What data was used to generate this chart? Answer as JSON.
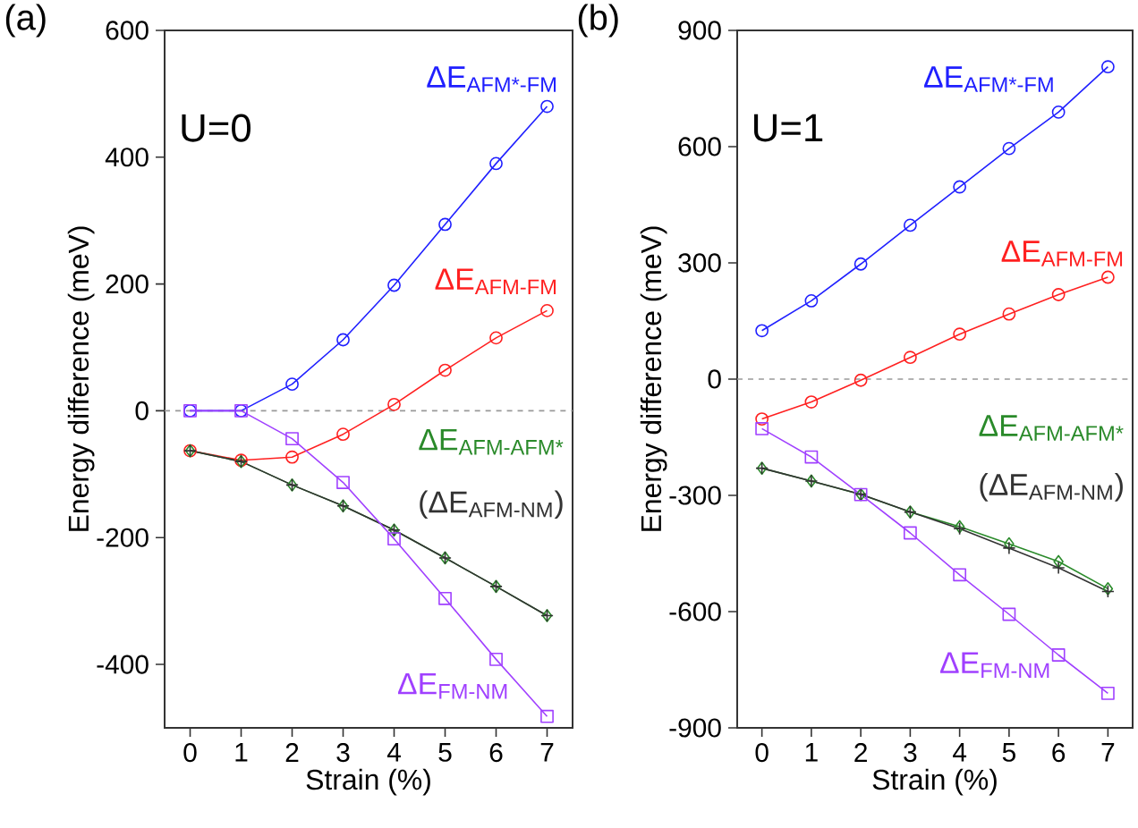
{
  "chart_data": [
    {
      "type": "line",
      "title": "(a)",
      "xlabel": "Strain (%)",
      "ylabel": "Energy difference (meV)",
      "annotations": [
        "U=0"
      ],
      "x": [
        0,
        1,
        2,
        3,
        4,
        5,
        6,
        7
      ],
      "xlim": [
        -0.5,
        7.5
      ],
      "xticks": [
        0,
        1,
        2,
        3,
        4,
        5,
        6,
        7
      ],
      "ylim": [
        -500,
        600
      ],
      "yticks": [
        -400,
        -200,
        0,
        200,
        400,
        600
      ],
      "ref_lines": [
        {
          "axis": "y",
          "value": 0,
          "color": "#999999",
          "line_style": "dashed"
        }
      ],
      "series": [
        {
          "name": "ΔE$_{AFM*-FM}$",
          "color": "#2020ff",
          "marker": "circle",
          "values": [
            0,
            0,
            42,
            112,
            198,
            294,
            390,
            480
          ]
        },
        {
          "name": "ΔE$_{AFM-FM}$",
          "color": "#ff2020",
          "marker": "circle",
          "values": [
            -63,
            -78,
            -73,
            -37,
            10,
            64,
            115,
            158
          ]
        },
        {
          "name": "ΔE$_{AFM-AFM*}$",
          "color": "#2a8a2a",
          "marker": "diamond",
          "values": [
            -63,
            -80,
            -117,
            -150,
            -188,
            -232,
            -277,
            -323
          ]
        },
        {
          "name": "(ΔE$_{AFM-NM}$)",
          "color": "#333333",
          "marker": "cross",
          "values": [
            -63,
            -80,
            -117,
            -150,
            -188,
            -232,
            -277,
            -323
          ]
        },
        {
          "name": "ΔE$_{FM-NM}$",
          "color": "#a040ff",
          "marker": "square",
          "values": [
            0,
            0,
            -44,
            -113,
            -202,
            -296,
            -392,
            -482
          ]
        }
      ]
    },
    {
      "type": "line",
      "title": "(b)",
      "xlabel": "Strain (%)",
      "ylabel": "Energy difference (meV)",
      "annotations": [
        "U=1"
      ],
      "x": [
        0,
        1,
        2,
        3,
        4,
        5,
        6,
        7
      ],
      "xlim": [
        -0.5,
        7.5
      ],
      "xticks": [
        0,
        1,
        2,
        3,
        4,
        5,
        6,
        7
      ],
      "ylim": [
        -900,
        900
      ],
      "yticks": [
        -900,
        -600,
        -300,
        0,
        300,
        600,
        900
      ],
      "ref_lines": [
        {
          "axis": "y",
          "value": 0,
          "color": "#999999",
          "line_style": "dashed"
        }
      ],
      "series": [
        {
          "name": "ΔE$_{AFM*-FM}$",
          "color": "#2020ff",
          "marker": "circle",
          "values": [
            125,
            202,
            297,
            397,
            496,
            595,
            689,
            806
          ]
        },
        {
          "name": "ΔE$_{AFM-FM}$",
          "color": "#ff2020",
          "marker": "circle",
          "values": [
            -103,
            -59,
            -3,
            56,
            116,
            168,
            218,
            263
          ]
        },
        {
          "name": "ΔE$_{AFM-AFM*}$",
          "color": "#2a8a2a",
          "marker": "diamond",
          "values": [
            -230,
            -263,
            -298,
            -343,
            -381,
            -425,
            -471,
            -541
          ]
        },
        {
          "name": "(ΔE$_{AFM-NM}$)",
          "color": "#333333",
          "marker": "cross",
          "values": [
            -230,
            -263,
            -297,
            -343,
            -386,
            -436,
            -487,
            -548
          ]
        },
        {
          "name": "ΔE$_{FM-NM}$",
          "color": "#a040ff",
          "marker": "square",
          "values": [
            -128,
            -201,
            -298,
            -397,
            -505,
            -607,
            -712,
            -811
          ]
        }
      ]
    }
  ]
}
